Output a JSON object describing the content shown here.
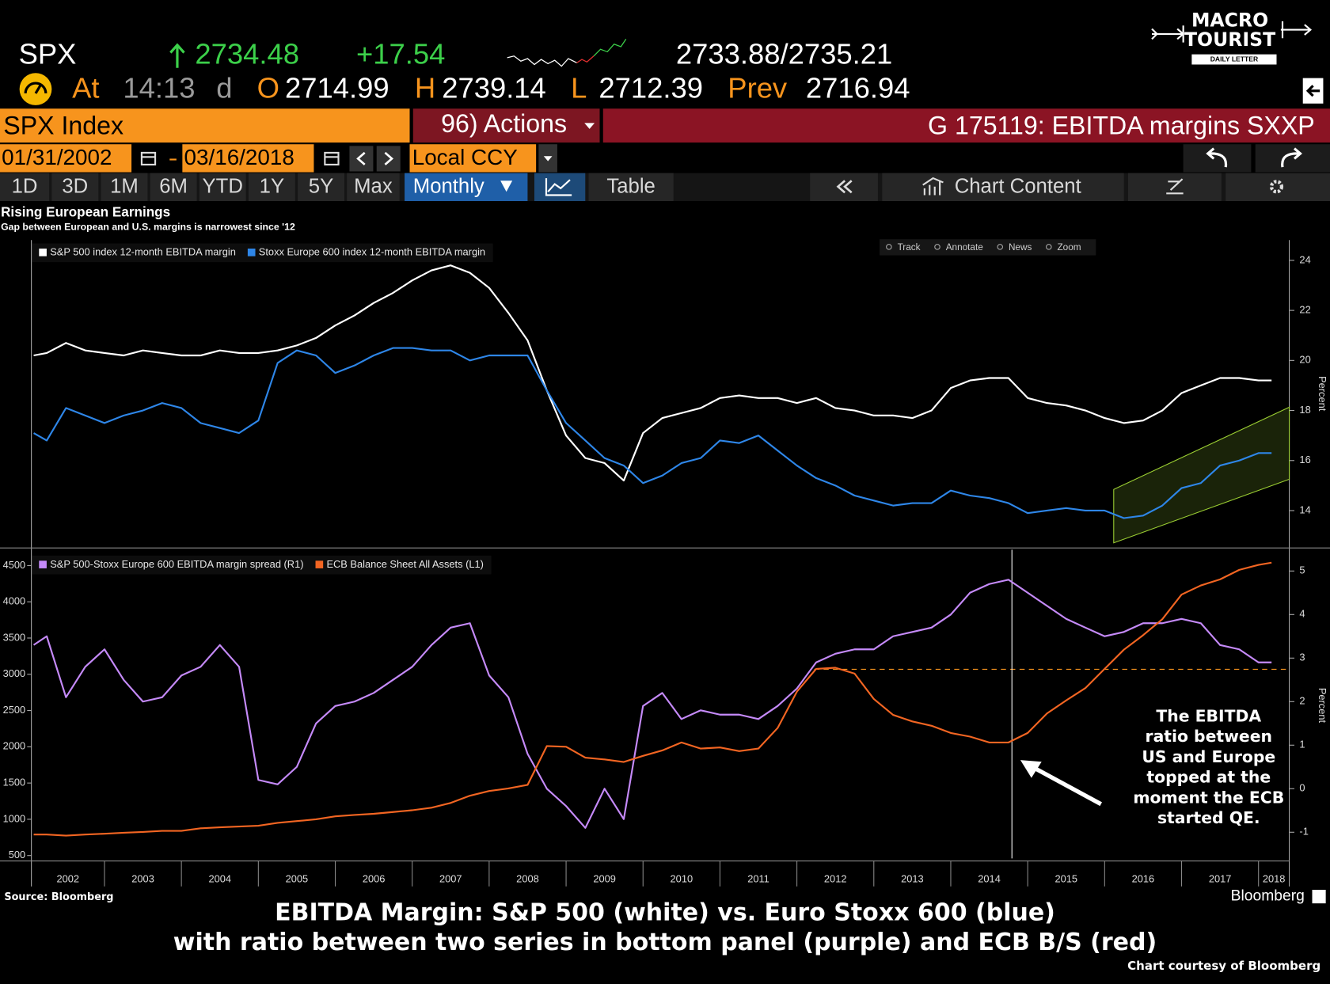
{
  "terminal": {
    "ticker": "SPX",
    "last": "2734.48",
    "change": "+17.54",
    "bid_ask": "2733.88/2735.21",
    "at_label": "At",
    "time": "14:13",
    "time_flag": "d",
    "open_label": "O",
    "open": "2714.99",
    "high_label": "H",
    "high": "2739.14",
    "low_label": "L",
    "low": "2712.39",
    "prev_label": "Prev",
    "prev": "2716.94",
    "security": "SPX Index",
    "actions": "96) Actions",
    "function": "G 175119: EBITDA margins SXXP",
    "start_date": "01/31/2002",
    "end_date": "03/16/2018",
    "currency": "Local CCY",
    "periods": [
      "1D",
      "3D",
      "1M",
      "6M",
      "YTD",
      "1Y",
      "5Y",
      "Max"
    ],
    "frequency": "Monthly",
    "table": "Table",
    "chart_content": "Chart Content",
    "tools": [
      "Track",
      "Annotate",
      "News",
      "Zoom"
    ]
  },
  "logo": {
    "line1": "MACRO",
    "line2": "TOURIST",
    "line3": "DAILY LETTER"
  },
  "chart_data": [
    {
      "type": "line",
      "title": "Rising European Earnings",
      "subtitle": "Gap between European and U.S. margins is narrowest since '12",
      "y_label": "Percent",
      "x": [
        2002.08,
        2002.25,
        2002.5,
        2002.75,
        2003,
        2003.25,
        2003.5,
        2003.75,
        2004,
        2004.25,
        2004.5,
        2004.75,
        2005,
        2005.25,
        2005.5,
        2005.75,
        2006,
        2006.25,
        2006.5,
        2006.75,
        2007,
        2007.25,
        2007.5,
        2007.75,
        2008,
        2008.25,
        2008.5,
        2008.75,
        2009,
        2009.25,
        2009.5,
        2009.75,
        2010,
        2010.25,
        2010.5,
        2010.75,
        2011,
        2011.25,
        2011.5,
        2011.75,
        2012,
        2012.25,
        2012.5,
        2012.75,
        2013,
        2013.25,
        2013.5,
        2013.75,
        2014,
        2014.25,
        2014.5,
        2014.75,
        2015,
        2015.25,
        2015.5,
        2015.75,
        2016,
        2016.25,
        2016.5,
        2016.75,
        2017,
        2017.25,
        2017.5,
        2017.75,
        2018,
        2018.17
      ],
      "series": [
        {
          "name": "S&P 500 index 12-month EBITDA margin",
          "color": "#ffffff",
          "values": [
            20.2,
            20.3,
            20.7,
            20.4,
            20.3,
            20.2,
            20.4,
            20.3,
            20.2,
            20.2,
            20.4,
            20.3,
            20.3,
            20.4,
            20.6,
            20.9,
            21.4,
            21.8,
            22.3,
            22.7,
            23.2,
            23.6,
            23.8,
            23.5,
            22.9,
            21.9,
            20.8,
            18.8,
            17.0,
            16.1,
            15.9,
            15.2,
            17.1,
            17.7,
            17.9,
            18.1,
            18.5,
            18.6,
            18.5,
            18.5,
            18.3,
            18.5,
            18.1,
            18.0,
            17.8,
            17.8,
            17.7,
            18.0,
            18.9,
            19.2,
            19.3,
            19.3,
            18.5,
            18.3,
            18.2,
            18.0,
            17.7,
            17.5,
            17.6,
            18.0,
            18.7,
            19.0,
            19.3,
            19.3,
            19.2,
            19.2
          ]
        },
        {
          "name": "Stoxx Europe 600 index 12-month EBITDA margin",
          "color": "#2e86e8",
          "values": [
            17.1,
            16.8,
            18.1,
            17.8,
            17.5,
            17.8,
            18.0,
            18.3,
            18.1,
            17.5,
            17.3,
            17.1,
            17.6,
            19.9,
            20.4,
            20.2,
            19.5,
            19.8,
            20.2,
            20.5,
            20.5,
            20.4,
            20.4,
            20.0,
            20.2,
            20.2,
            20.2,
            18.8,
            17.5,
            16.8,
            16.1,
            15.8,
            15.1,
            15.4,
            15.9,
            16.1,
            16.8,
            16.7,
            17.0,
            16.4,
            15.8,
            15.3,
            15.0,
            14.6,
            14.4,
            14.2,
            14.3,
            14.3,
            14.8,
            14.6,
            14.5,
            14.3,
            13.9,
            14.0,
            14.1,
            14.0,
            14.0,
            13.7,
            13.8,
            14.2,
            14.9,
            15.1,
            15.8,
            16.0,
            16.3,
            16.3
          ]
        }
      ],
      "xlim": [
        2002.05,
        2018.4
      ],
      "ylim": [
        12.54,
        24.81
      ],
      "yticks": [
        14,
        16,
        18,
        20,
        22,
        24
      ]
    },
    {
      "type": "line",
      "y2_label": "Percent",
      "x": [
        2002.08,
        2002.25,
        2002.5,
        2002.75,
        2003,
        2003.25,
        2003.5,
        2003.75,
        2004,
        2004.25,
        2004.5,
        2004.75,
        2005,
        2005.25,
        2005.5,
        2005.75,
        2006,
        2006.25,
        2006.5,
        2006.75,
        2007,
        2007.25,
        2007.5,
        2007.75,
        2008,
        2008.25,
        2008.5,
        2008.75,
        2009,
        2009.25,
        2009.5,
        2009.75,
        2010,
        2010.25,
        2010.5,
        2010.75,
        2011,
        2011.25,
        2011.5,
        2011.75,
        2012,
        2012.25,
        2012.5,
        2012.75,
        2013,
        2013.25,
        2013.5,
        2013.75,
        2014,
        2014.25,
        2014.5,
        2014.75,
        2015,
        2015.25,
        2015.5,
        2015.75,
        2016,
        2016.25,
        2016.5,
        2016.75,
        2017,
        2017.25,
        2017.5,
        2017.75,
        2018,
        2018.17
      ],
      "series": [
        {
          "name": "S&P 500-Stoxx Europe 600 EBITDA margin spread (R1)",
          "color": "#c58af9",
          "axis": "y2",
          "values": [
            3.3,
            3.5,
            2.1,
            2.8,
            3.2,
            2.5,
            2.0,
            2.1,
            2.6,
            2.8,
            3.3,
            2.8,
            0.2,
            0.1,
            0.5,
            1.5,
            1.9,
            2.0,
            2.2,
            2.5,
            2.8,
            3.3,
            3.7,
            3.8,
            2.6,
            2.1,
            0.8,
            0.0,
            -0.4,
            -0.9,
            0.0,
            -0.7,
            1.9,
            2.2,
            1.6,
            1.8,
            1.7,
            1.7,
            1.6,
            1.9,
            2.3,
            2.9,
            3.1,
            3.2,
            3.2,
            3.5,
            3.6,
            3.7,
            4.0,
            4.5,
            4.7,
            4.8,
            4.5,
            4.2,
            3.9,
            3.7,
            3.5,
            3.6,
            3.8,
            3.8,
            3.9,
            3.8,
            3.3,
            3.2,
            2.9,
            2.9
          ]
        },
        {
          "name": "ECB Balance Sheet All Assets  (L1)",
          "color": "#f26522",
          "values": [
            790,
            790,
            775,
            790,
            800,
            815,
            825,
            840,
            840,
            875,
            890,
            900,
            910,
            950,
            975,
            1000,
            1040,
            1060,
            1075,
            1100,
            1125,
            1160,
            1225,
            1325,
            1390,
            1425,
            1475,
            2010,
            2000,
            1850,
            1825,
            1790,
            1875,
            1950,
            2060,
            1975,
            1990,
            1940,
            1975,
            2260,
            2760,
            3075,
            3090,
            3010,
            2660,
            2440,
            2350,
            2290,
            2190,
            2140,
            2060,
            2060,
            2190,
            2460,
            2640,
            2810,
            3075,
            3340,
            3540,
            3760,
            4100,
            4225,
            4310,
            4440,
            4510,
            4540
          ]
        }
      ],
      "xlim": [
        2002.05,
        2018.4
      ],
      "xticks": [
        2002,
        2003,
        2004,
        2005,
        2006,
        2007,
        2008,
        2009,
        2010,
        2011,
        2012,
        2013,
        2014,
        2015,
        2016,
        2017,
        2018
      ],
      "ylim": [
        425,
        4719
      ],
      "yticks": [
        500,
        1000,
        1500,
        2000,
        2500,
        3000,
        3500,
        4000,
        4500
      ],
      "y2lim": [
        -1.66,
        5.49
      ],
      "y2ticks": [
        -1,
        0,
        1,
        2,
        3,
        4,
        5
      ]
    }
  ],
  "annotation": [
    "The EBITDA",
    "ratio between",
    "US and Europe",
    "topped at the",
    "moment the ECB",
    "started QE."
  ],
  "source": "Source: Bloomberg",
  "brand": "Bloomberg",
  "caption": [
    "EBITDA Margin: S&P 500 (white) vs. Euro Stoxx 600 (blue)",
    "with ratio between two series in bottom panel (purple) and ECB B/S (red)"
  ],
  "credit": "Chart courtesy of Bloomberg"
}
